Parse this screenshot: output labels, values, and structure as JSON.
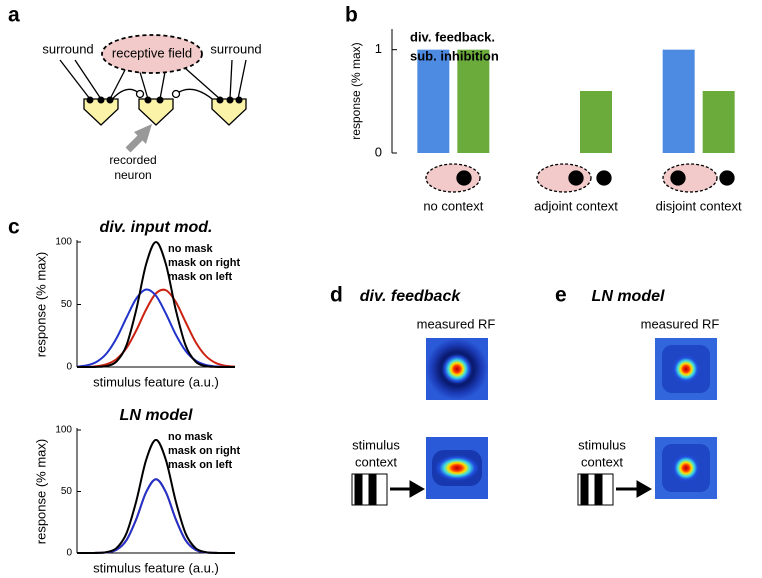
{
  "panel_labels": [
    "a",
    "b",
    "c",
    "d",
    "e"
  ],
  "diagram": {
    "receptive_field": "receptive field",
    "surround_left": "surround",
    "surround_right": "surround",
    "recorded_neuron": [
      "recorded",
      "neuron"
    ]
  },
  "chart_data": [
    {
      "type": "bar",
      "ylabel": "response (% max)",
      "categories": [
        "no context",
        "adjoint context",
        "disjoint context"
      ],
      "series": [
        {
          "name": "div. feedback.",
          "color": "#4d8be3",
          "values": [
            1,
            0,
            1
          ]
        },
        {
          "name": "sub. inhibition",
          "color": "#6aab3c",
          "values": [
            1,
            0.6,
            0.6
          ]
        }
      ],
      "ylim": [
        0,
        1.2
      ],
      "yticks": [
        0,
        1
      ],
      "legend": "upper left"
    },
    {
      "type": "line",
      "title": "div. input mod.",
      "xlabel": "stimulus feature (a.u.)",
      "ylabel": "response (% max)",
      "x": [
        -4,
        -3.5,
        -3,
        -2.5,
        -2,
        -1.5,
        -1,
        -0.5,
        0,
        0.5,
        1,
        1.5,
        2,
        2.5,
        3,
        3.5,
        4
      ],
      "series": [
        {
          "name": "no mask",
          "color": "#000000",
          "values": [
            0,
            0,
            0.1,
            0.8,
            4.4,
            17.2,
            45.8,
            82.3,
            100,
            82.3,
            45.8,
            17.2,
            4.4,
            0.8,
            0.1,
            0,
            0
          ]
        },
        {
          "name": "mask on right",
          "color": "#2233cc",
          "values": [
            0.3,
            1.3,
            4.2,
            10.9,
            23.0,
            39.3,
            54.7,
            62.0,
            57.0,
            42.7,
            26.0,
            12.9,
            5.2,
            1.7,
            0.5,
            0.1,
            0
          ]
        },
        {
          "name": "mask on left",
          "color": "#cc2211",
          "values": [
            0,
            0.1,
            0.6,
            2.2,
            6.3,
            15.1,
            29.2,
            46.0,
            58.9,
            61.4,
            52.1,
            35.9,
            20.1,
            9.2,
            3.4,
            1.0,
            0.3
          ]
        }
      ],
      "xlim": [
        -4,
        4
      ],
      "ylim": [
        0,
        100
      ],
      "yticks": [
        0,
        50,
        100
      ],
      "legend": "upper right"
    },
    {
      "type": "line",
      "title": "LN model",
      "xlabel": "stimulus feature (a.u.)",
      "ylabel": "response (% max)",
      "x": [
        -4,
        -3.5,
        -3,
        -2.5,
        -2,
        -1.5,
        -1,
        -0.5,
        0,
        0.5,
        1,
        1.5,
        2,
        2.5,
        3,
        3.5,
        4
      ],
      "series": [
        {
          "name": "no mask",
          "color": "#000000",
          "values": [
            0,
            0,
            0.1,
            0.7,
            4.0,
            15.8,
            42.1,
            75.7,
            92,
            75.7,
            42.1,
            15.8,
            4.0,
            0.7,
            0.1,
            0,
            0
          ]
        },
        {
          "name": "mask on right",
          "color": "#2233cc",
          "values": [
            0,
            0,
            0.1,
            0.5,
            2.6,
            10.3,
            27.5,
            49.4,
            60,
            49.4,
            27.5,
            10.3,
            2.6,
            0.5,
            0.1,
            0,
            0
          ]
        },
        {
          "name": "mask on left",
          "color": "#cc2211",
          "values": [
            0,
            0,
            0.1,
            0.5,
            2.6,
            10.3,
            27.5,
            49.4,
            60,
            49.4,
            27.5,
            10.3,
            2.6,
            0.5,
            0.1,
            0,
            0
          ]
        }
      ],
      "xlim": [
        -4,
        4
      ],
      "ylim": [
        0,
        100
      ],
      "yticks": [
        0,
        50,
        100
      ],
      "legend": "upper right"
    }
  ],
  "heatmap_panels": [
    {
      "title": "div. feedback",
      "measured": "measured RF",
      "stimulus_context": [
        "stimulus",
        "context"
      ]
    },
    {
      "title": "LN model",
      "measured": "measured RF",
      "stimulus_context": [
        "stimulus",
        "context"
      ]
    }
  ]
}
